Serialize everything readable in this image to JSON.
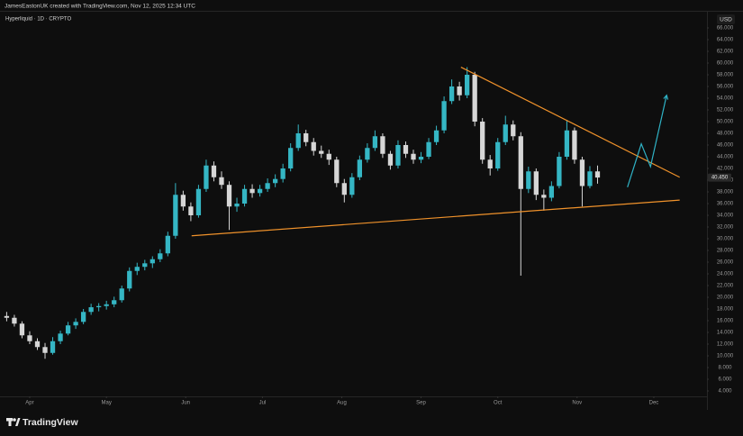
{
  "header": "JamesEastonUK created with TradingView.com, Nov 12, 2025 12:34 UTC",
  "brand": "TradingView",
  "chart_data": {
    "type": "candlestick",
    "title": "Hyperliquid · 1D · CRYPTO",
    "currency": "USD",
    "up_color": "#35b6c4",
    "down_color": "#d6d6d6",
    "xlim": [
      -0.87,
      91.26
    ],
    "xticks": [
      {
        "value": 3,
        "label": "Apr"
      },
      {
        "value": 13,
        "label": "May"
      },
      {
        "value": 23.33,
        "label": "Jun"
      },
      {
        "value": 33.33,
        "label": "Jul"
      },
      {
        "value": 43.67,
        "label": "Aug"
      },
      {
        "value": 54,
        "label": "Sep"
      },
      {
        "value": 64,
        "label": "Oct"
      },
      {
        "value": 74.33,
        "label": "Nov"
      },
      {
        "value": 84.33,
        "label": "Dec"
      }
    ],
    "ylim": [
      3.08,
      68.92
    ],
    "yticks": [
      {
        "value": 4,
        "label": "4.000"
      },
      {
        "value": 6,
        "label": "6.000"
      },
      {
        "value": 8,
        "label": "8.000"
      },
      {
        "value": 10,
        "label": "10.000"
      },
      {
        "value": 12,
        "label": "12.000"
      },
      {
        "value": 14,
        "label": "14.000"
      },
      {
        "value": 16,
        "label": "16.000"
      },
      {
        "value": 18,
        "label": "18.000"
      },
      {
        "value": 20,
        "label": "20.000"
      },
      {
        "value": 22,
        "label": "22.000"
      },
      {
        "value": 24,
        "label": "24.000"
      },
      {
        "value": 26,
        "label": "26.000"
      },
      {
        "value": 28,
        "label": "28.000"
      },
      {
        "value": 30,
        "label": "30.000"
      },
      {
        "value": 32,
        "label": "32.000"
      },
      {
        "value": 34,
        "label": "34.000"
      },
      {
        "value": 36,
        "label": "36.000"
      },
      {
        "value": 38,
        "label": "38.000"
      },
      {
        "value": 40,
        "label": "40.000"
      },
      {
        "value": 42,
        "label": "42.000"
      },
      {
        "value": 44,
        "label": "44.000"
      },
      {
        "value": 46,
        "label": "46.000"
      },
      {
        "value": 48,
        "label": "48.000"
      },
      {
        "value": 50,
        "label": "50.000"
      },
      {
        "value": 52,
        "label": "52.000"
      },
      {
        "value": 54,
        "label": "54.000"
      },
      {
        "value": 56,
        "label": "56.000"
      },
      {
        "value": 58,
        "label": "58.000"
      },
      {
        "value": 60,
        "label": "60.000"
      },
      {
        "value": 62,
        "label": "62.000"
      },
      {
        "value": 64,
        "label": "64.000"
      },
      {
        "value": 66,
        "label": "66.000"
      }
    ],
    "grid": false,
    "last_price": {
      "value": 40.45,
      "label": "40.450"
    },
    "ohlc": [
      [
        16.8,
        17.5,
        15.9,
        16.5
      ],
      [
        16.5,
        17.0,
        15.0,
        15.5
      ],
      [
        15.5,
        15.9,
        13.0,
        13.5
      ],
      [
        13.5,
        14.2,
        12.0,
        12.5
      ],
      [
        12.5,
        13.0,
        11.0,
        11.5
      ],
      [
        11.5,
        12.2,
        9.5,
        10.5
      ],
      [
        10.5,
        13.2,
        10.2,
        12.5
      ],
      [
        12.5,
        14.3,
        12.0,
        13.8
      ],
      [
        13.8,
        15.8,
        13.5,
        15.2
      ],
      [
        15.2,
        16.4,
        14.6,
        15.8
      ],
      [
        15.8,
        18.0,
        15.4,
        17.5
      ],
      [
        17.5,
        18.9,
        17.0,
        18.3
      ],
      [
        18.3,
        19.0,
        17.6,
        18.5
      ],
      [
        18.5,
        19.4,
        17.9,
        18.8
      ],
      [
        18.8,
        20.1,
        18.3,
        19.5
      ],
      [
        19.5,
        22.0,
        19.1,
        21.5
      ],
      [
        21.5,
        25.1,
        21.0,
        24.5
      ],
      [
        24.5,
        25.9,
        23.8,
        25.2
      ],
      [
        25.2,
        26.4,
        24.6,
        25.8
      ],
      [
        25.8,
        27.0,
        25.0,
        26.5
      ],
      [
        26.5,
        28.2,
        26.0,
        27.5
      ],
      [
        27.5,
        31.2,
        27.0,
        30.5
      ],
      [
        30.5,
        39.5,
        30.0,
        37.5
      ],
      [
        37.5,
        38.2,
        34.8,
        35.5
      ],
      [
        35.5,
        36.2,
        33.0,
        34.0
      ],
      [
        34.0,
        39.2,
        33.6,
        38.5
      ],
      [
        38.5,
        43.5,
        38.0,
        42.5
      ],
      [
        42.5,
        43.2,
        39.8,
        40.5
      ],
      [
        40.5,
        41.5,
        38.5,
        39.2
      ],
      [
        39.2,
        39.8,
        31.5,
        35.5
      ],
      [
        35.5,
        37.0,
        34.6,
        36.0
      ],
      [
        36.0,
        39.2,
        35.5,
        38.5
      ],
      [
        38.5,
        39.3,
        37.0,
        37.8
      ],
      [
        37.8,
        39.2,
        37.2,
        38.5
      ],
      [
        38.5,
        40.3,
        38.0,
        39.5
      ],
      [
        39.5,
        41.0,
        38.8,
        40.2
      ],
      [
        40.2,
        42.8,
        39.6,
        42.0
      ],
      [
        42.0,
        46.3,
        41.5,
        45.5
      ],
      [
        45.5,
        49.5,
        45.0,
        48.0
      ],
      [
        48.0,
        48.6,
        45.8,
        46.5
      ],
      [
        46.5,
        47.2,
        44.2,
        45.0
      ],
      [
        45.0,
        45.9,
        43.8,
        44.5
      ],
      [
        44.5,
        45.2,
        42.6,
        43.5
      ],
      [
        43.5,
        44.0,
        38.8,
        39.5
      ],
      [
        39.5,
        40.2,
        36.2,
        37.5
      ],
      [
        37.5,
        41.2,
        37.0,
        40.5
      ],
      [
        40.5,
        44.2,
        40.0,
        43.5
      ],
      [
        43.5,
        46.3,
        43.0,
        45.5
      ],
      [
        45.5,
        48.5,
        45.0,
        47.5
      ],
      [
        47.5,
        48.0,
        43.8,
        44.5
      ],
      [
        44.5,
        45.0,
        41.8,
        42.5
      ],
      [
        42.5,
        46.8,
        42.0,
        46.0
      ],
      [
        46.0,
        46.6,
        43.8,
        44.5
      ],
      [
        44.5,
        45.2,
        42.8,
        43.5
      ],
      [
        43.5,
        44.8,
        42.9,
        44.0
      ],
      [
        44.0,
        47.2,
        43.6,
        46.5
      ],
      [
        46.5,
        49.3,
        46.0,
        48.5
      ],
      [
        48.5,
        54.3,
        48.0,
        53.5
      ],
      [
        53.5,
        57.2,
        53.0,
        56.0
      ],
      [
        56.0,
        56.8,
        53.6,
        54.5
      ],
      [
        54.5,
        59.3,
        54.0,
        58.0
      ],
      [
        58.0,
        58.5,
        49.2,
        50.0
      ],
      [
        50.0,
        50.6,
        42.8,
        43.5
      ],
      [
        43.5,
        44.3,
        40.8,
        42.0
      ],
      [
        42.0,
        47.2,
        41.6,
        46.5
      ],
      [
        46.5,
        51.0,
        46.0,
        49.5
      ],
      [
        49.5,
        50.2,
        46.8,
        47.5
      ],
      [
        47.5,
        48.2,
        23.7,
        38.5
      ],
      [
        38.5,
        42.3,
        37.8,
        41.5
      ],
      [
        41.5,
        42.0,
        36.6,
        37.5
      ],
      [
        37.5,
        38.4,
        34.8,
        37.0
      ],
      [
        37.0,
        39.8,
        36.4,
        39.0
      ],
      [
        39.0,
        44.8,
        38.6,
        44.0
      ],
      [
        44.0,
        50.2,
        43.5,
        48.5
      ],
      [
        48.5,
        49.0,
        42.8,
        43.5
      ],
      [
        43.5,
        44.0,
        35.5,
        39.0
      ],
      [
        39.0,
        42.4,
        38.6,
        41.5
      ],
      [
        41.5,
        42.5,
        39.4,
        40.45
      ]
    ],
    "trendlines": [
      {
        "color": "#f0922b",
        "points": [
          [
            59.2,
            59.3
          ],
          [
            87.7,
            40.5
          ]
        ]
      },
      {
        "color": "#f0922b",
        "points": [
          [
            24.1,
            30.5
          ],
          [
            87.7,
            36.6
          ]
        ]
      },
      {
        "color": "#2fb3c6",
        "points": [
          [
            80.9,
            38.8
          ],
          [
            82.7,
            46.2
          ],
          [
            83.9,
            42.3
          ],
          [
            86.0,
            54.5
          ]
        ]
      }
    ]
  }
}
